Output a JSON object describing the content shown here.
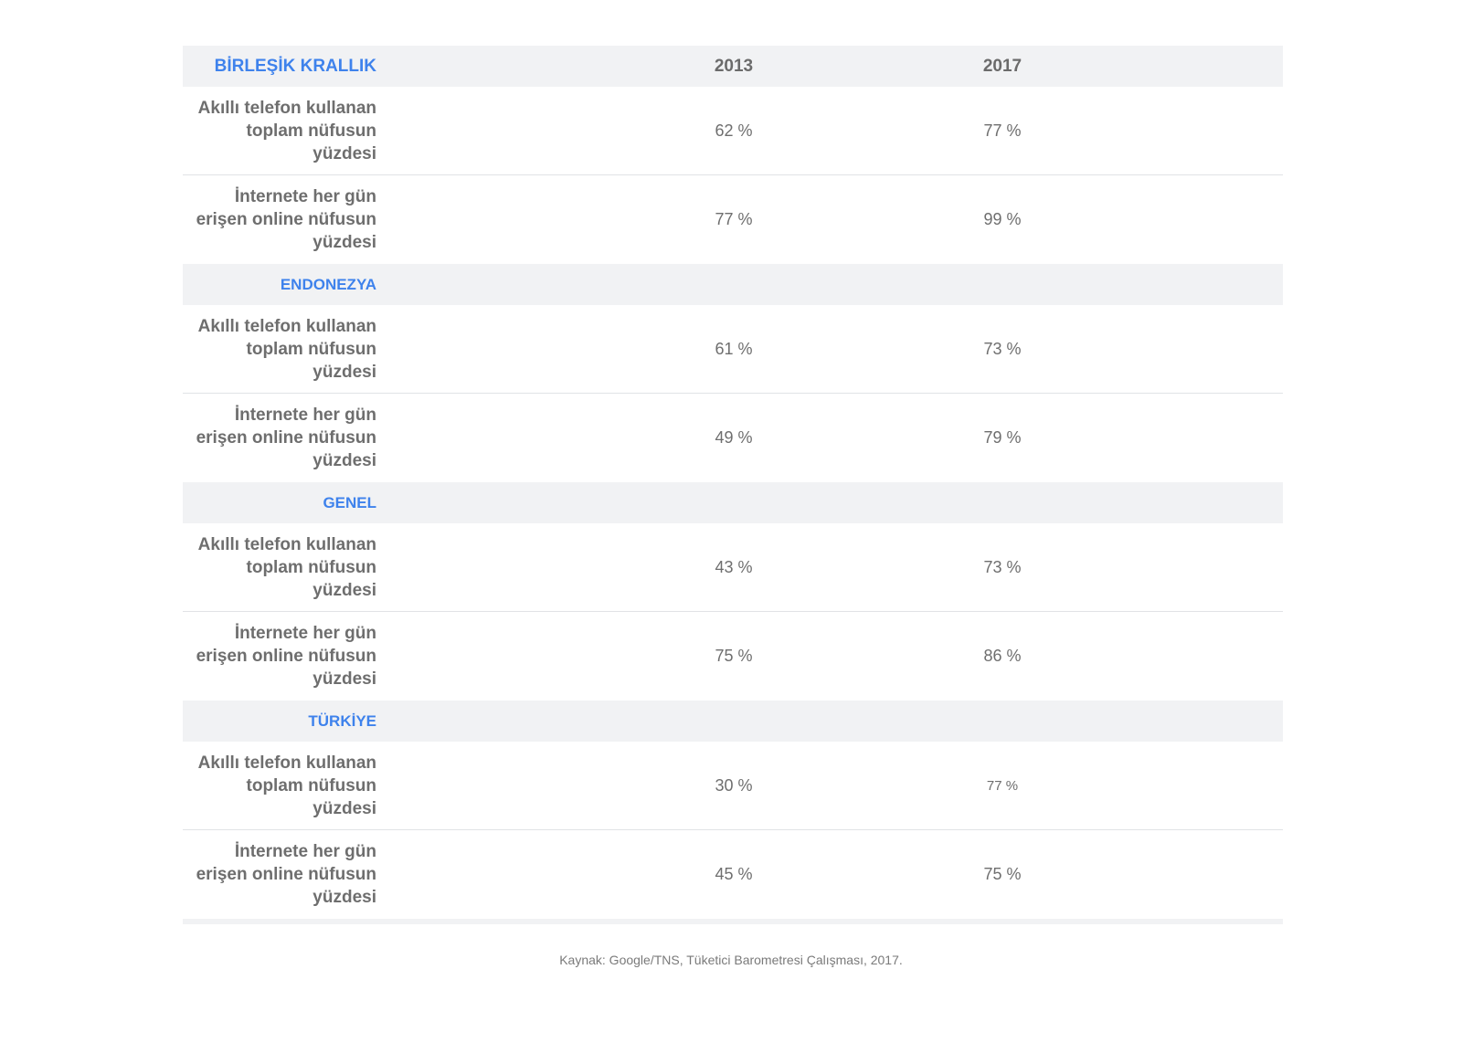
{
  "table": {
    "year1": "2013",
    "year2": "2017",
    "groups": [
      {
        "country": "BİRLEŞİK KRALLIK",
        "rows": [
          {
            "label": "Akıllı telefon kullanan toplam nüfusun yüzdesi",
            "v2013": "62 %",
            "v2017": "77 %"
          },
          {
            "label": "İnternete her gün erişen online nüfusun yüzdesi",
            "v2013": "77 %",
            "v2017": "99 %"
          }
        ]
      },
      {
        "country": "ENDONEZYA",
        "rows": [
          {
            "label": "Akıllı telefon kullanan toplam nüfusun yüzdesi",
            "v2013": "61 %",
            "v2017": "73 %"
          },
          {
            "label": "İnternete her gün erişen online nüfusun yüzdesi",
            "v2013": "49 %",
            "v2017": "79 %"
          }
        ]
      },
      {
        "country": "GENEL",
        "rows": [
          {
            "label": "Akıllı telefon kullanan toplam nüfusun yüzdesi",
            "v2013": "43 %",
            "v2017": "73 %"
          },
          {
            "label": "İnternete her gün erişen online nüfusun yüzdesi",
            "v2013": "75 %",
            "v2017": "86 %"
          }
        ]
      },
      {
        "country": "TÜRKİYE",
        "rows": [
          {
            "label": "Akıllı telefon kullanan toplam nüfusun yüzdesi",
            "v2013": "30 %",
            "v2017": "77 %"
          },
          {
            "label": "İnternete her gün erişen online nüfusun yüzdesi",
            "v2013": "45 %",
            "v2017": "75 %"
          }
        ]
      }
    ]
  },
  "footer": {
    "source": "Kaynak: Google/TNS, Tüketici Barometresi Çalışması, 2017."
  },
  "colors": {
    "accent": "#3e82ec",
    "header_bg": "#f1f2f4",
    "text": "#6e6e6e"
  }
}
